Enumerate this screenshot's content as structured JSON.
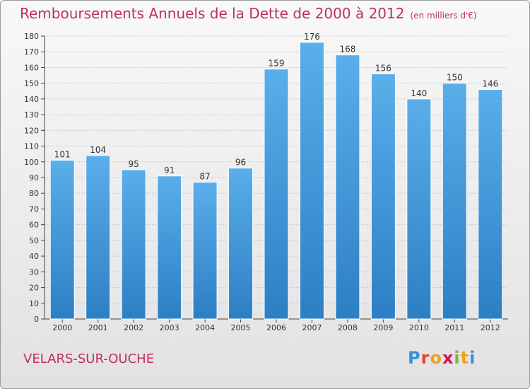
{
  "header": {
    "title": "Remboursements Annuels de la Dette de 2000 à 2012",
    "unit": "(en milliers d'€)"
  },
  "footer": {
    "commune": "VELARS-SUR-OUCHE",
    "logo_letters": [
      "P",
      "r",
      "o",
      "x",
      "i",
      "t",
      "i"
    ],
    "logo_colors": [
      "#3a8fd8",
      "#e8412c",
      "#f0a020",
      "#d4145a",
      "#7cb342",
      "#f0a020",
      "#3a8fd8"
    ]
  },
  "colors": {
    "bar_top": "#5aaeea",
    "bar_bottom": "#2d7fc4",
    "accent": "#c0305a"
  },
  "chart_data": {
    "type": "bar",
    "title": "Remboursements Annuels de la Dette de 2000 à 2012",
    "categories": [
      "2000",
      "2001",
      "2002",
      "2003",
      "2004",
      "2005",
      "2006",
      "2007",
      "2008",
      "2009",
      "2010",
      "2011",
      "2012"
    ],
    "values": [
      101,
      104,
      95,
      91,
      87,
      96,
      159,
      176,
      168,
      156,
      140,
      150,
      146
    ],
    "ylim": [
      0,
      180
    ],
    "yticks": [
      0,
      10,
      20,
      30,
      40,
      50,
      60,
      70,
      80,
      90,
      100,
      110,
      120,
      130,
      140,
      150,
      160,
      170,
      180
    ],
    "grid": true,
    "xlabel": "",
    "ylabel": ""
  }
}
